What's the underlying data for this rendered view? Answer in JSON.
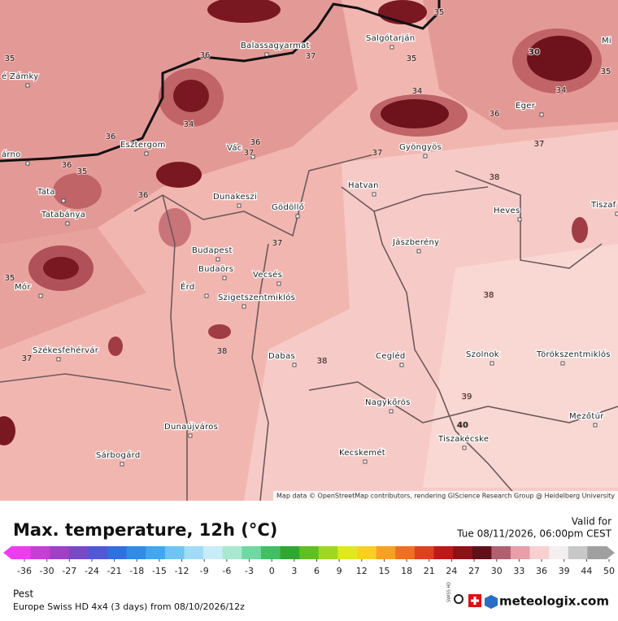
{
  "map": {
    "cities": [
      "Balassagyarmat",
      "Salgótarján",
      "Mi",
      "é Zámky",
      "Eger",
      "Esztergom",
      "Vác",
      "Gyöngyös",
      "árno",
      "Tata",
      "Hatvan",
      "Dunakeszi",
      "Gödöllő",
      "Tatabánya",
      "Heves",
      "Tiszaf",
      "Jászberény",
      "Budapest",
      "Budaörs",
      "Vecsés",
      "Mór",
      "Érd",
      "Szigetszentmiklós",
      "Székesfehérvár",
      "Cegléd",
      "Dabas",
      "Szolnok",
      "Törökszentmiklós",
      "Nagykőrös",
      "Mezőtúr",
      "Dunaújváros",
      "Tiszakécske",
      "Kecskemét",
      "Sárbogárd"
    ],
    "contour_labels": [
      35,
      35,
      36,
      37,
      35,
      30,
      35,
      34,
      34,
      36,
      34,
      36,
      36,
      37,
      37,
      37,
      36,
      35,
      36,
      38,
      37,
      35,
      38,
      37,
      38,
      38,
      39,
      40
    ],
    "attribution": "Map data © OpenStreetMap contributors, rendering GIScience Research Group @ Heidelberg University"
  },
  "footer": {
    "title": "Max. temperature, 12h (°C)",
    "valid_label": "Valid for",
    "valid_time": "Tue 08/11/2026, 06:00pm CEST",
    "region": "Pest",
    "model": "Europe Swiss HD 4x4 (3 days) from 08/10/2026/12z",
    "brand": "meteologix.com",
    "badge": "SWISS HD"
  },
  "colorbar": {
    "ticks": [
      -36,
      -30,
      -27,
      -24,
      -21,
      -18,
      -15,
      -12,
      -9,
      -6,
      -3,
      0,
      3,
      6,
      9,
      12,
      15,
      18,
      21,
      24,
      27,
      30,
      33,
      36,
      39,
      44,
      50
    ],
    "colors": [
      "#f03cf0",
      "#c83cd8",
      "#a040c8",
      "#7848c8",
      "#5058d8",
      "#3070e0",
      "#2f8ce8",
      "#40a8f0",
      "#70c4f4",
      "#a0dcf8",
      "#c8ecf8",
      "#a8e8d0",
      "#70d8a0",
      "#40c060",
      "#30a830",
      "#60c020",
      "#a0d820",
      "#e0e820",
      "#f8d020",
      "#f8a020",
      "#f07020",
      "#e04020",
      "#c01818",
      "#901018",
      "#601018",
      "#b06070",
      "#e8a0a8",
      "#f8d0d0",
      "#f4eeee",
      "#c8c8c8",
      "#a0a0a0"
    ]
  }
}
